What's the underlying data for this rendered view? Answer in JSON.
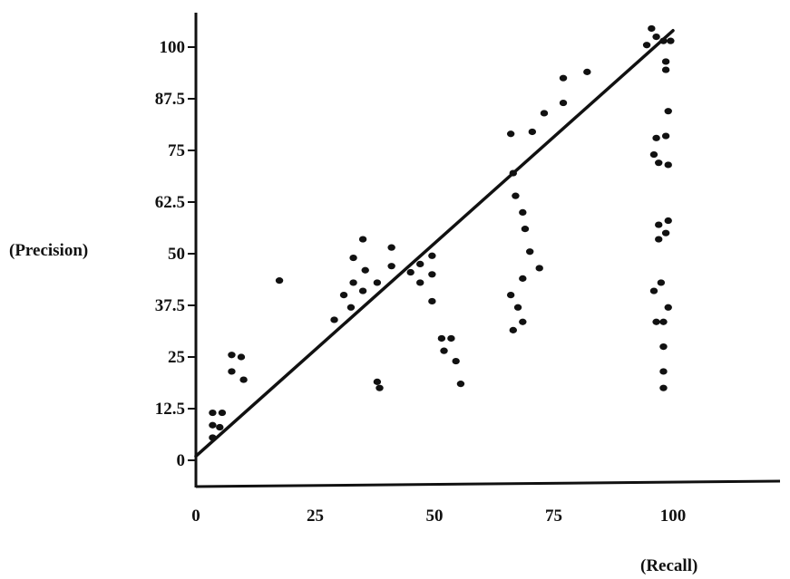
{
  "chart_data": {
    "type": "scatter",
    "title": "",
    "xlabel": "(Recall)",
    "ylabel": "(Precision)",
    "xlim": [
      0,
      125
    ],
    "ylim": [
      0,
      108
    ],
    "x_ticks": [
      0,
      25,
      50,
      75,
      100
    ],
    "x_tick_labels": [
      "0",
      "25",
      "50",
      "75",
      "100"
    ],
    "y_ticks": [
      0,
      12.5,
      25,
      37.5,
      50,
      62.5,
      75,
      87.5,
      100
    ],
    "y_tick_labels": [
      "0",
      "12.5",
      "25",
      "37.5",
      "50",
      "62.5",
      "75",
      "87.5",
      "100"
    ],
    "grid": false,
    "legend": "none",
    "colors": {
      "points": "#111111",
      "line": "#111111",
      "axes": "#111111"
    },
    "trend_line": {
      "x": [
        0,
        100
      ],
      "y": [
        1,
        104
      ]
    },
    "series": [
      {
        "points": [
          {
            "x": 3.5,
            "y": 11.5
          },
          {
            "x": 5.5,
            "y": 11.5
          },
          {
            "x": 3.5,
            "y": 8.5
          },
          {
            "x": 5,
            "y": 8
          },
          {
            "x": 3.5,
            "y": 5.5
          },
          {
            "x": 7.5,
            "y": 25.5
          },
          {
            "x": 9.5,
            "y": 25
          },
          {
            "x": 7.5,
            "y": 21.5
          },
          {
            "x": 10,
            "y": 19.5
          },
          {
            "x": 17.5,
            "y": 43.5
          },
          {
            "x": 29,
            "y": 34
          },
          {
            "x": 31,
            "y": 40
          },
          {
            "x": 32.5,
            "y": 37
          },
          {
            "x": 33,
            "y": 43
          },
          {
            "x": 33,
            "y": 49
          },
          {
            "x": 35,
            "y": 53.5
          },
          {
            "x": 35.5,
            "y": 46
          },
          {
            "x": 35,
            "y": 41
          },
          {
            "x": 38,
            "y": 43
          },
          {
            "x": 38,
            "y": 19
          },
          {
            "x": 38.5,
            "y": 17.5
          },
          {
            "x": 41,
            "y": 51.5
          },
          {
            "x": 41,
            "y": 47
          },
          {
            "x": 45,
            "y": 45.5
          },
          {
            "x": 47,
            "y": 47.5
          },
          {
            "x": 47,
            "y": 43
          },
          {
            "x": 49.5,
            "y": 49.5
          },
          {
            "x": 49.5,
            "y": 45
          },
          {
            "x": 49.5,
            "y": 38.5
          },
          {
            "x": 51.5,
            "y": 29.5
          },
          {
            "x": 53.5,
            "y": 29.5
          },
          {
            "x": 52,
            "y": 26.5
          },
          {
            "x": 54.5,
            "y": 24
          },
          {
            "x": 55.5,
            "y": 18.5
          },
          {
            "x": 66,
            "y": 79
          },
          {
            "x": 66.5,
            "y": 69.5
          },
          {
            "x": 67,
            "y": 64
          },
          {
            "x": 68.5,
            "y": 60
          },
          {
            "x": 69,
            "y": 56
          },
          {
            "x": 70,
            "y": 50.5
          },
          {
            "x": 72,
            "y": 46.5
          },
          {
            "x": 68.5,
            "y": 44
          },
          {
            "x": 66,
            "y": 40
          },
          {
            "x": 67.5,
            "y": 37
          },
          {
            "x": 68.5,
            "y": 33.5
          },
          {
            "x": 66.5,
            "y": 31.5
          },
          {
            "x": 70.5,
            "y": 79.5
          },
          {
            "x": 73,
            "y": 84
          },
          {
            "x": 77,
            "y": 86.5
          },
          {
            "x": 77,
            "y": 92.5
          },
          {
            "x": 82,
            "y": 94
          },
          {
            "x": 94.5,
            "y": 100.5
          },
          {
            "x": 95.5,
            "y": 104.5
          },
          {
            "x": 96.5,
            "y": 102.5
          },
          {
            "x": 98,
            "y": 101.5
          },
          {
            "x": 99.5,
            "y": 101.5
          },
          {
            "x": 98.5,
            "y": 96.5
          },
          {
            "x": 98.5,
            "y": 94.5
          },
          {
            "x": 99,
            "y": 84.5
          },
          {
            "x": 96.5,
            "y": 78
          },
          {
            "x": 98.5,
            "y": 78.5
          },
          {
            "x": 96,
            "y": 74
          },
          {
            "x": 97,
            "y": 72
          },
          {
            "x": 99,
            "y": 71.5
          },
          {
            "x": 97,
            "y": 57
          },
          {
            "x": 99,
            "y": 58
          },
          {
            "x": 97,
            "y": 53.5
          },
          {
            "x": 98.5,
            "y": 55
          },
          {
            "x": 97.5,
            "y": 43
          },
          {
            "x": 96,
            "y": 41
          },
          {
            "x": 99,
            "y": 37
          },
          {
            "x": 96.5,
            "y": 33.5
          },
          {
            "x": 98,
            "y": 33.5
          },
          {
            "x": 98,
            "y": 27.5
          },
          {
            "x": 98,
            "y": 21.5
          },
          {
            "x": 98,
            "y": 17.5
          }
        ]
      }
    ]
  }
}
